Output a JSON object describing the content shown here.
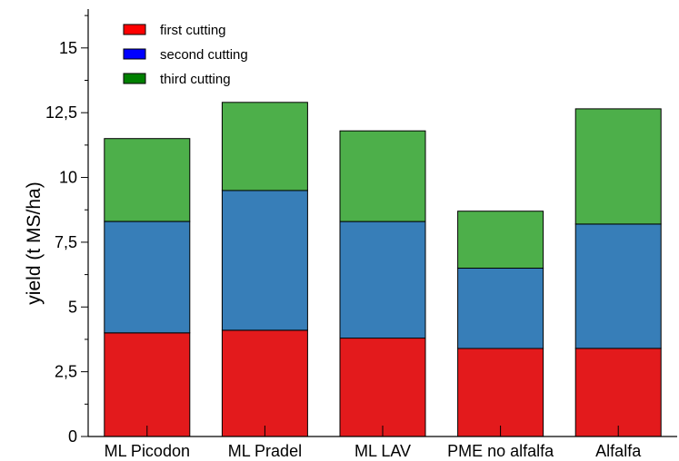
{
  "chart_data": {
    "type": "bar",
    "stacked": true,
    "title": "",
    "xlabel": "",
    "ylabel": "yield (t MS/ha)",
    "ylim": [
      0,
      16.5
    ],
    "yticks": [
      0,
      2.5,
      5,
      7.5,
      10,
      12.5,
      15
    ],
    "ytick_labels": [
      "0",
      "2,5",
      "5",
      "7,5",
      "10",
      "12,5",
      "15"
    ],
    "grid": false,
    "legend_position": "top-left",
    "categories": [
      "ML Picodon",
      "ML Pradel",
      "ML LAV",
      "PME no alfalfa",
      "Alfalfa"
    ],
    "series": [
      {
        "name": "first cutting",
        "values": [
          4.0,
          4.1,
          3.8,
          3.4,
          3.4
        ],
        "color": "#e31a1c",
        "legend_color": "#ff0000"
      },
      {
        "name": "second cutting",
        "values": [
          4.3,
          5.4,
          4.5,
          3.1,
          4.8
        ],
        "color": "#377eb8",
        "legend_color": "#0000ff"
      },
      {
        "name": "third cutting",
        "values": [
          3.2,
          3.4,
          3.5,
          2.2,
          4.45
        ],
        "color": "#4daf4a",
        "legend_color": "#008000"
      }
    ]
  }
}
